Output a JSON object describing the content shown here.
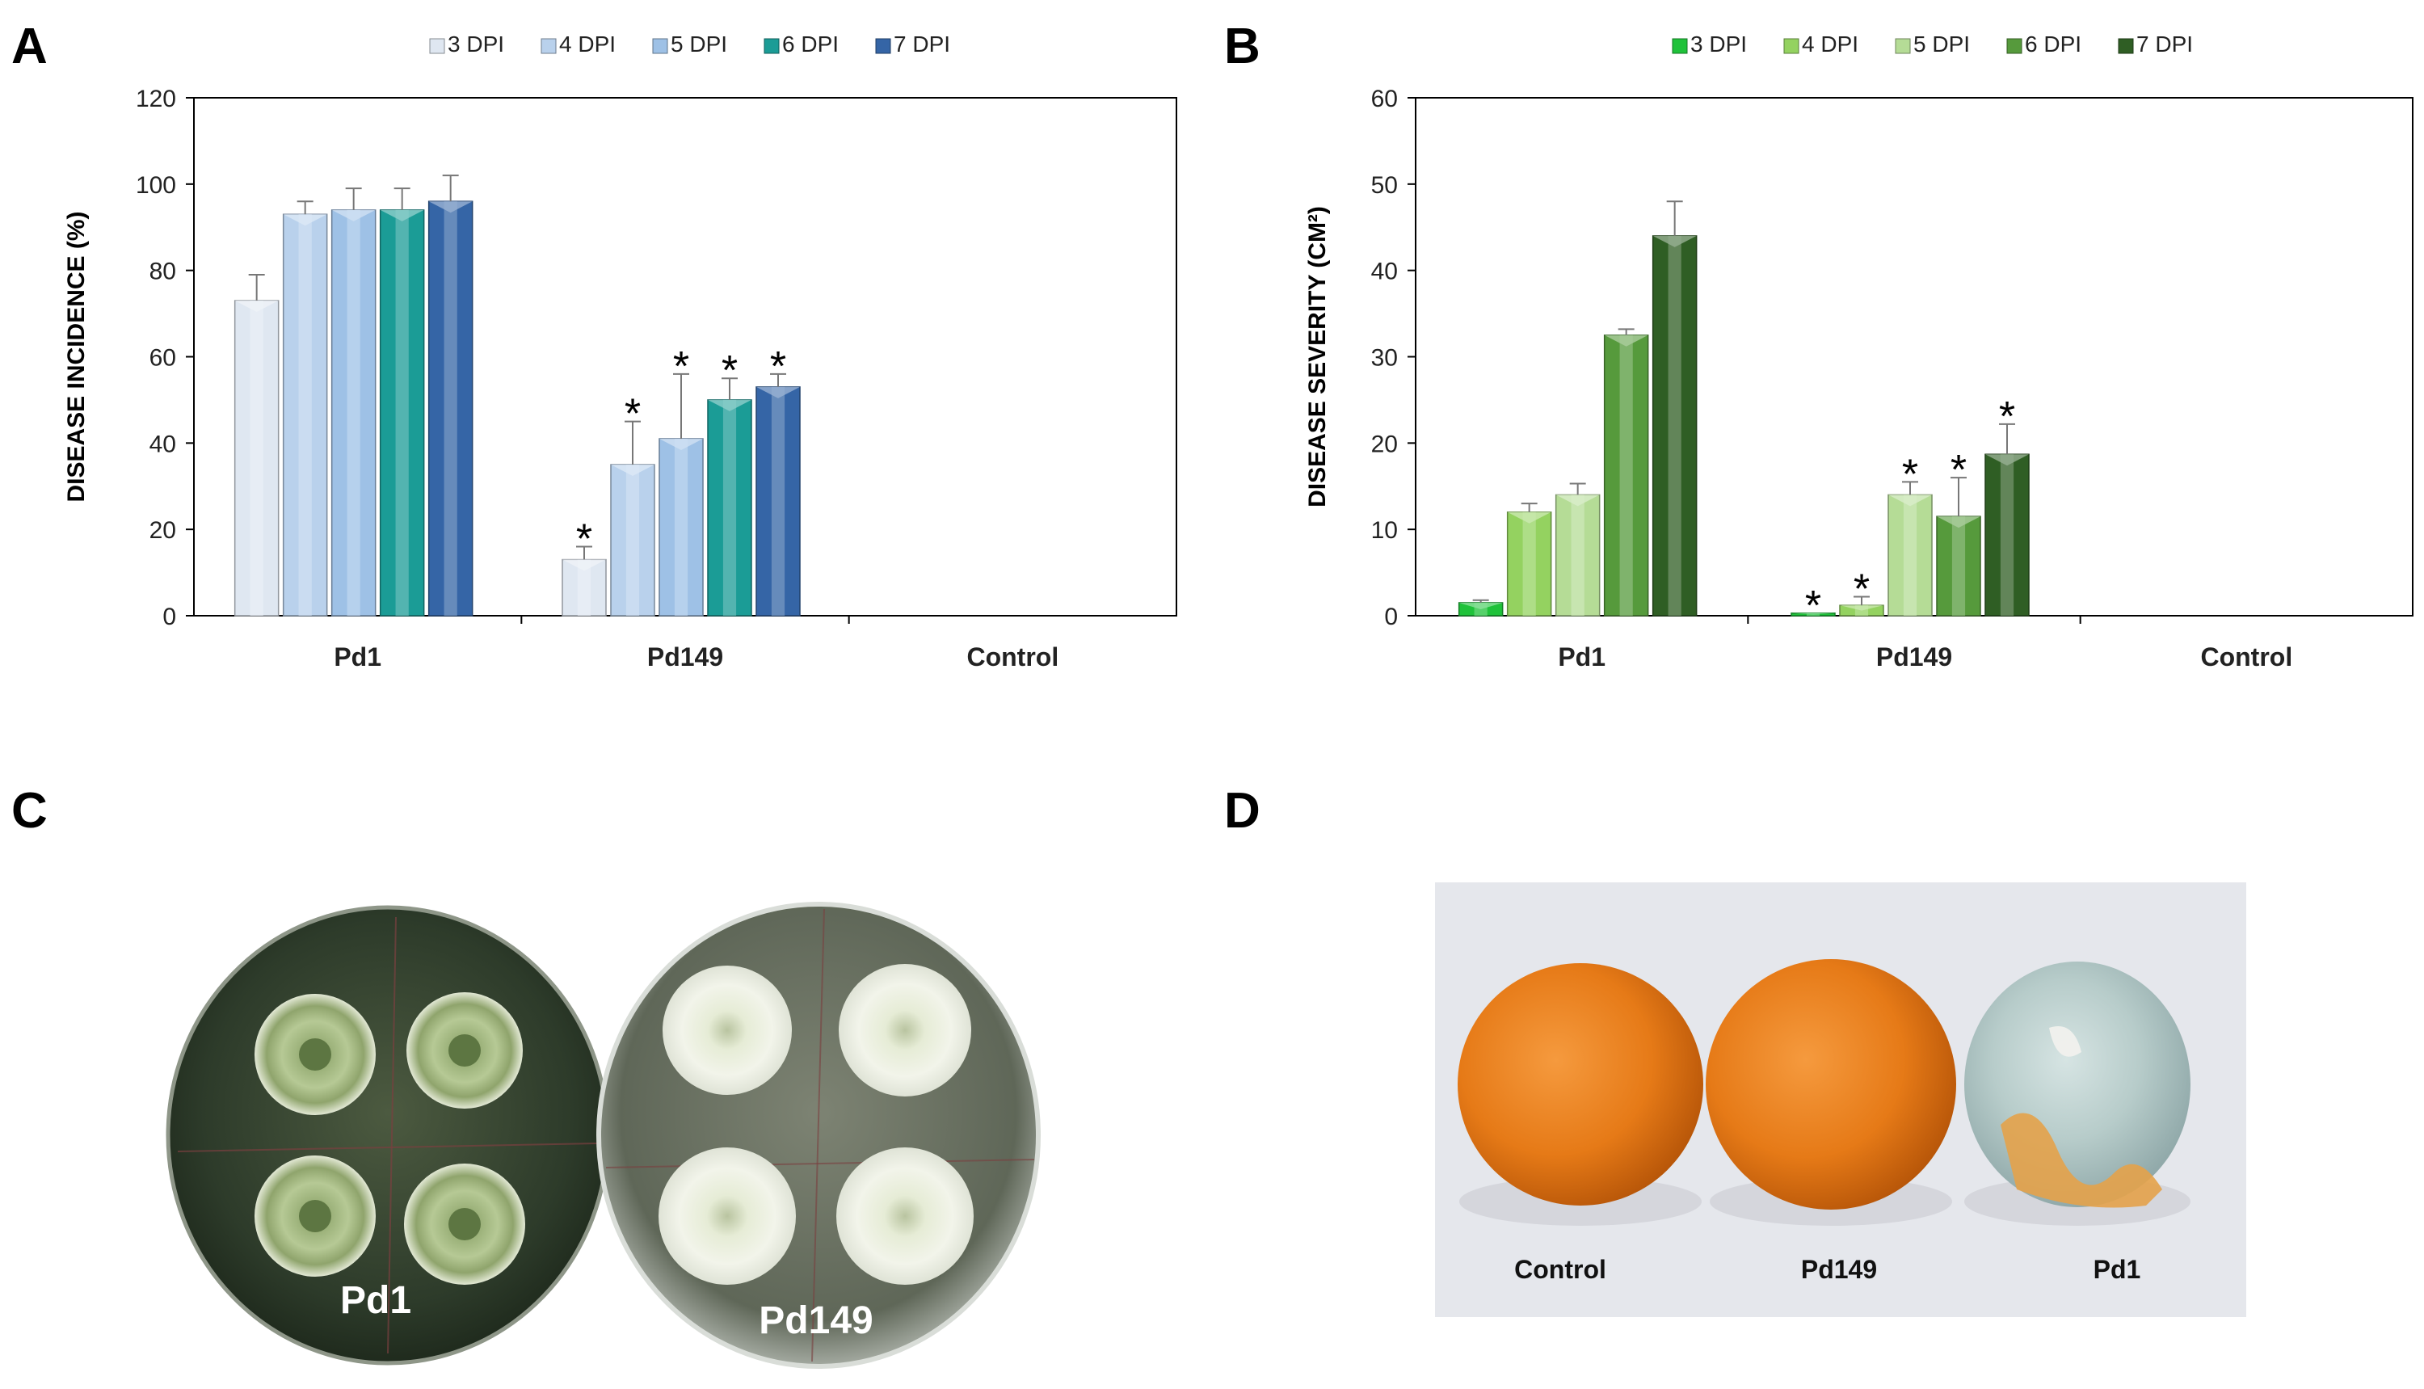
{
  "panels": {
    "a": "A",
    "b": "B",
    "c": "C",
    "d": "D"
  },
  "chart_data": [
    {
      "type": "bar",
      "panel": "A",
      "ylabel": "DISEASE INCIDENCE (%)",
      "xlabel": "",
      "ylim": [
        0,
        120
      ],
      "yticks": [
        0,
        20,
        40,
        60,
        80,
        100,
        120
      ],
      "categories": [
        "Pd1",
        "Pd149",
        "Control"
      ],
      "legend_position": "top-center",
      "series": [
        {
          "name": "3 DPI",
          "color": "#dfe7f1",
          "values": [
            73,
            13,
            0
          ],
          "errors": [
            6,
            3,
            0
          ],
          "sig": [
            "",
            "*",
            ""
          ]
        },
        {
          "name": "4 DPI",
          "color": "#b9d1ec",
          "values": [
            93,
            35,
            0
          ],
          "errors": [
            3,
            10,
            0
          ],
          "sig": [
            "",
            "*",
            ""
          ]
        },
        {
          "name": "5 DPI",
          "color": "#9ec1e6",
          "values": [
            94,
            41,
            0
          ],
          "errors": [
            5,
            15,
            0
          ],
          "sig": [
            "",
            "*",
            ""
          ]
        },
        {
          "name": "6 DPI",
          "color": "#1b9c96",
          "values": [
            94,
            50,
            0
          ],
          "errors": [
            5,
            5,
            0
          ],
          "sig": [
            "",
            "*",
            ""
          ]
        },
        {
          "name": "7 DPI",
          "color": "#3565a6",
          "values": [
            96,
            53,
            0
          ],
          "errors": [
            6,
            3,
            0
          ],
          "sig": [
            "",
            "*",
            ""
          ]
        }
      ]
    },
    {
      "type": "bar",
      "panel": "B",
      "ylabel": "DISEASE SEVERITY (CM²)",
      "xlabel": "",
      "ylim": [
        0,
        60
      ],
      "yticks": [
        0,
        10,
        20,
        30,
        40,
        50,
        60
      ],
      "categories": [
        "Pd1",
        "Pd149",
        "Control"
      ],
      "legend_position": "top-center",
      "series": [
        {
          "name": "3 DPI",
          "color": "#1fc23a",
          "values": [
            1.5,
            0.3,
            0
          ],
          "errors": [
            0.3,
            0,
            0
          ],
          "sig": [
            "",
            "*",
            ""
          ]
        },
        {
          "name": "4 DPI",
          "color": "#94d260",
          "values": [
            12,
            1.2,
            0
          ],
          "errors": [
            1,
            1,
            0
          ],
          "sig": [
            "",
            "*",
            ""
          ]
        },
        {
          "name": "5 DPI",
          "color": "#b5dc96",
          "values": [
            14,
            14,
            0
          ],
          "errors": [
            1.3,
            1.5,
            0
          ],
          "sig": [
            "",
            "*",
            ""
          ]
        },
        {
          "name": "6 DPI",
          "color": "#569a3c",
          "values": [
            32.5,
            11.5,
            0
          ],
          "errors": [
            0.7,
            4.5,
            0
          ],
          "sig": [
            "",
            "*",
            ""
          ]
        },
        {
          "name": "7 DPI",
          "color": "#2f5e24",
          "values": [
            44,
            18.7,
            0
          ],
          "errors": [
            4,
            3.5,
            0
          ],
          "sig": [
            "",
            "*",
            ""
          ]
        }
      ]
    }
  ],
  "photo_c": {
    "labels": [
      "Pd1",
      "Pd149"
    ]
  },
  "photo_d": {
    "labels": [
      "Control",
      "Pd149",
      "Pd1"
    ]
  }
}
